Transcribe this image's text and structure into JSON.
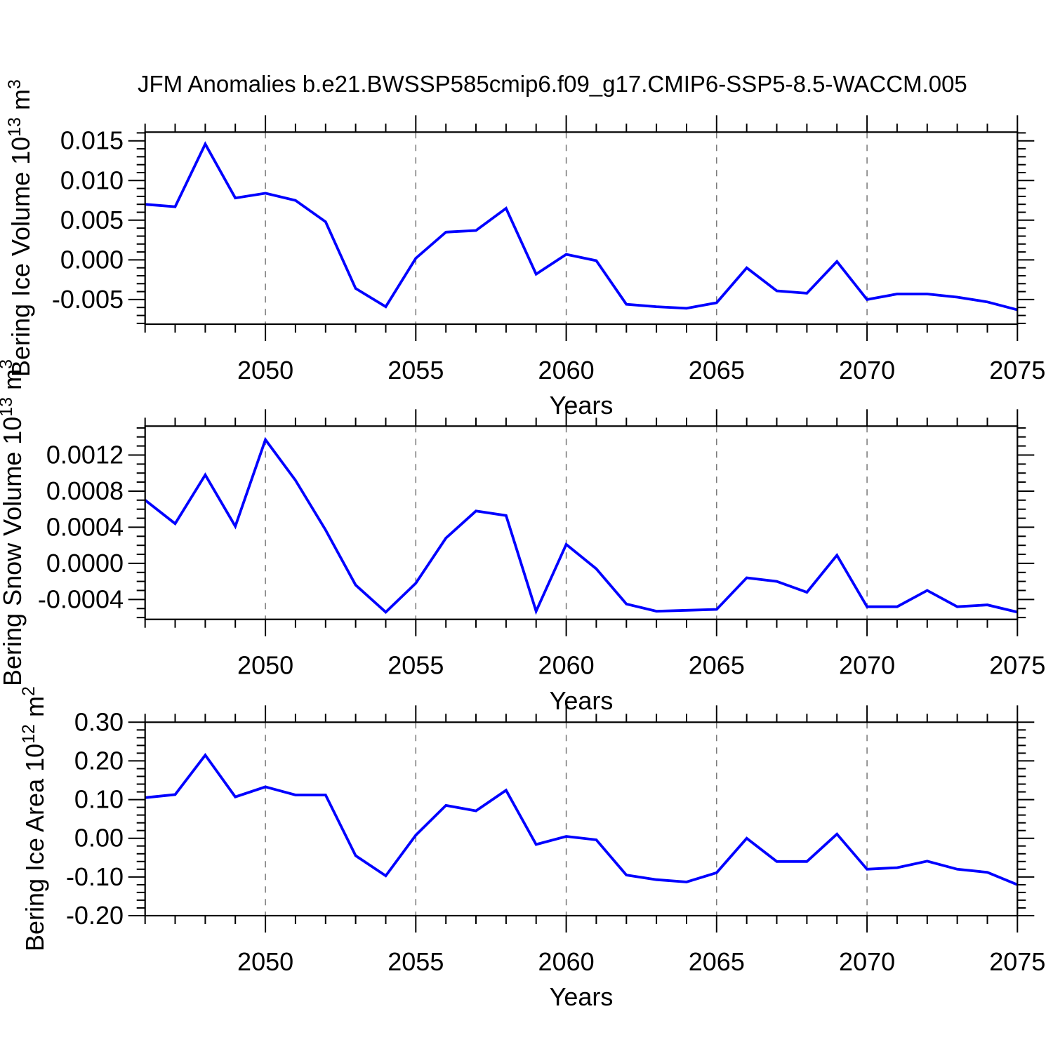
{
  "title": "JFM Anomalies b.e21.BWSSP585cmip6.f09_g17.CMIP6-SSP5-8.5-WACCM.005",
  "colors": {
    "line": "#0000ff",
    "axis": "#000000",
    "gridline": "#777777",
    "text": "#000000",
    "background": "#ffffff"
  },
  "x_axis": {
    "label": "Years",
    "range": [
      2046,
      2075
    ],
    "major_ticks": [
      2050,
      2055,
      2060,
      2065,
      2070,
      2075
    ],
    "major_tick_labels": [
      "2050",
      "2055",
      "2060",
      "2065",
      "2070",
      "2075"
    ],
    "minor_step": 1,
    "gridline_years": [
      2050,
      2055,
      2060,
      2065,
      2070
    ]
  },
  "chart_data": [
    {
      "id": "ice-volume",
      "type": "line",
      "ylabel": "Bering Ice Volume 10^13 m^3",
      "ylabel_parts": [
        "Bering Ice Volume 10",
        {
          "sup": "13"
        },
        " m",
        {
          "sup": "3"
        }
      ],
      "xlabel": "Years",
      "legend": "none",
      "grid": "vertical-dashed",
      "xlim": [
        2046,
        2075
      ],
      "ylim": [
        -0.0081,
        0.0161
      ],
      "y_major_ticks": [
        0.015,
        0.01,
        0.005,
        0.0,
        -0.005
      ],
      "y_tick_labels": [
        "0.015",
        "0.010",
        "0.005",
        "0.000",
        "-0.005"
      ],
      "y_minor_step": 0.001,
      "x": [
        2046,
        2047,
        2048,
        2049,
        2050,
        2051,
        2052,
        2053,
        2054,
        2055,
        2056,
        2057,
        2058,
        2059,
        2060,
        2061,
        2062,
        2063,
        2064,
        2065,
        2066,
        2067,
        2068,
        2069,
        2070,
        2071,
        2072,
        2073,
        2074,
        2075
      ],
      "values": [
        0.007,
        0.0067,
        0.0146,
        0.0078,
        0.0084,
        0.0075,
        0.0048,
        -0.0036,
        -0.0059,
        0.0002,
        0.0035,
        0.0037,
        0.0065,
        -0.0018,
        0.0007,
        -0.0001,
        -0.0056,
        -0.0059,
        -0.0061,
        -0.0054,
        -0.001,
        -0.0039,
        -0.0042,
        -0.0002,
        -0.005,
        -0.0043,
        -0.0043,
        -0.0047,
        -0.0053,
        -0.0063
      ]
    },
    {
      "id": "snow-volume",
      "type": "line",
      "ylabel": "Bering Snow Volume 10^13 m^3",
      "ylabel_parts": [
        "Bering Snow Volume 10",
        {
          "sup": "13"
        },
        " m",
        {
          "sup": "3"
        }
      ],
      "xlabel": "Years",
      "legend": "none",
      "grid": "vertical-dashed",
      "xlim": [
        2046,
        2075
      ],
      "ylim": [
        -0.00062,
        0.00152
      ],
      "y_major_ticks": [
        0.0012,
        0.0008,
        0.0004,
        0.0,
        -0.0004
      ],
      "y_tick_labels": [
        "0.0012",
        "0.0008",
        "0.0004",
        "0.0000",
        "-0.0004"
      ],
      "y_minor_step": 0.0001,
      "x": [
        2046,
        2047,
        2048,
        2049,
        2050,
        2051,
        2052,
        2053,
        2054,
        2055,
        2056,
        2057,
        2058,
        2059,
        2060,
        2061,
        2062,
        2063,
        2064,
        2065,
        2066,
        2067,
        2068,
        2069,
        2070,
        2071,
        2072,
        2073,
        2074,
        2075
      ],
      "values": [
        0.0007,
        0.00044,
        0.00098,
        0.00041,
        0.00137,
        0.00092,
        0.00037,
        -0.00024,
        -0.00054,
        -0.00022,
        0.00028,
        0.00058,
        0.00053,
        -0.00053,
        0.00021,
        -6e-05,
        -0.00045,
        -0.00053,
        -0.00052,
        -0.00051,
        -0.00016,
        -0.0002,
        -0.00032,
        9e-05,
        -0.00048,
        -0.00048,
        -0.0003,
        -0.00048,
        -0.00046,
        -0.00054
      ]
    },
    {
      "id": "ice-area",
      "type": "line",
      "ylabel": "Bering Ice Area 10^12 m^2",
      "ylabel_parts": [
        "Bering Ice Area 10",
        {
          "sup": "12"
        },
        " m",
        {
          "sup": "2"
        }
      ],
      "xlabel": "Years",
      "legend": "none",
      "grid": "vertical-dashed",
      "xlim": [
        2046,
        2075
      ],
      "ylim": [
        -0.2,
        0.3
      ],
      "y_major_ticks": [
        0.3,
        0.2,
        0.1,
        0.0,
        -0.1,
        -0.2
      ],
      "y_tick_labels": [
        "0.30",
        "0.20",
        "0.10",
        "0.00",
        "-0.10",
        "-0.20"
      ],
      "y_minor_step": 0.02,
      "x": [
        2046,
        2047,
        2048,
        2049,
        2050,
        2051,
        2052,
        2053,
        2054,
        2055,
        2056,
        2057,
        2058,
        2059,
        2060,
        2061,
        2062,
        2063,
        2064,
        2065,
        2066,
        2067,
        2068,
        2069,
        2070,
        2071,
        2072,
        2073,
        2074,
        2075
      ],
      "values": [
        0.105,
        0.113,
        0.215,
        0.107,
        0.133,
        0.112,
        0.112,
        -0.045,
        -0.097,
        0.008,
        0.085,
        0.071,
        0.124,
        -0.016,
        0.005,
        -0.004,
        -0.095,
        -0.107,
        -0.113,
        -0.089,
        0.0,
        -0.06,
        -0.06,
        0.011,
        -0.08,
        -0.076,
        -0.059,
        -0.08,
        -0.088,
        -0.12
      ]
    }
  ]
}
